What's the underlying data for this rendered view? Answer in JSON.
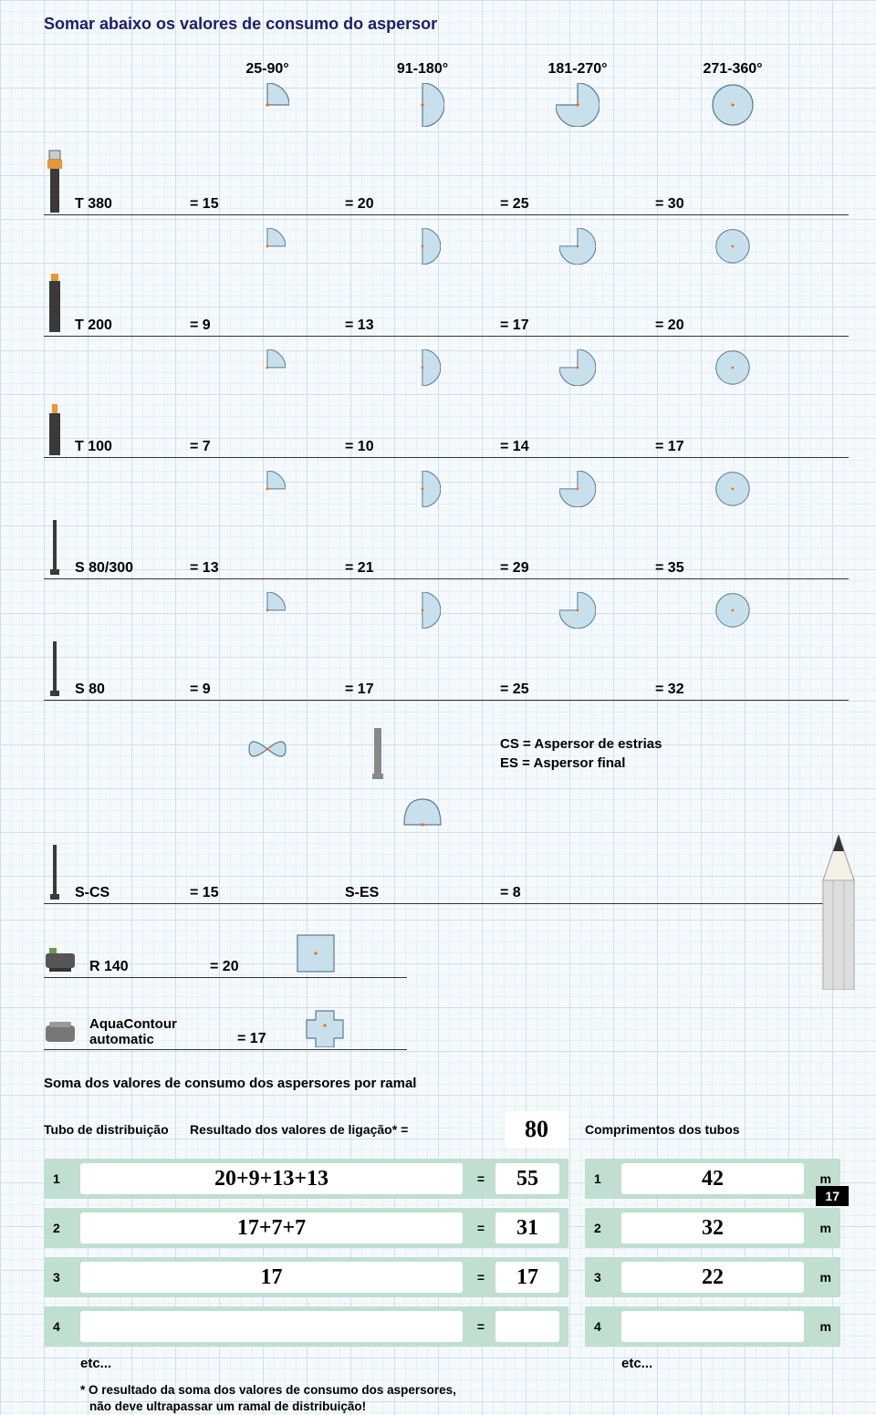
{
  "title": "Somar abaixo os valores de consumo do aspersor",
  "arc_headers": [
    "25-90°",
    "91-180°",
    "181-270°",
    "271-360°"
  ],
  "arc_fill": "#c7e0ec",
  "arc_stroke": "#5a7a95",
  "dot_color": "#ff6400",
  "rows": [
    {
      "label": "T 380",
      "vals": [
        "= 15",
        "= 20",
        "= 25",
        "= 30"
      ],
      "icon": "t380"
    },
    {
      "label": "T 200",
      "vals": [
        "= 9",
        "= 13",
        "= 17",
        "= 20"
      ],
      "icon": "t200"
    },
    {
      "label": "T  100",
      "vals": [
        "= 7",
        "= 10",
        "= 14",
        "= 17"
      ],
      "icon": "t100"
    },
    {
      "label": "S 80/300",
      "vals": [
        "= 13",
        "= 21",
        "= 29",
        "= 35"
      ],
      "icon": "stick"
    },
    {
      "label": "S 80",
      "vals": [
        "= 9",
        "= 17",
        "= 25",
        "= 32"
      ],
      "icon": "stick"
    }
  ],
  "cs_legend_1": "CS = Aspersor de estrias",
  "cs_legend_2": "ES = Aspersor final",
  "scs": {
    "l1": "S-CS",
    "v1": "= 15",
    "l2": "S-ES",
    "v2": "= 8"
  },
  "extras": [
    {
      "label": "R 140",
      "val": "= 20",
      "icon": "r140"
    },
    {
      "label": "AquaContour automatic",
      "val": "= 17",
      "icon": "aqua"
    }
  ],
  "soma_hdr": "Soma dos valores de consumo dos aspersores por ramal",
  "calc_left_hdr_1": "Tubo de distribuição",
  "calc_left_hdr_2": "Resultado dos valores de ligação* =",
  "calc_left_top_box": "80",
  "calc_right_hdr": "Comprimentos dos tubos",
  "calc_rows": [
    {
      "n": "1",
      "expr": "20+9+13+13",
      "res": "55",
      "len": "42"
    },
    {
      "n": "2",
      "expr": "17+7+7",
      "res": "31",
      "len": "32"
    },
    {
      "n": "3",
      "expr": "17",
      "res": "17",
      "len": "22"
    },
    {
      "n": "4",
      "expr": "",
      "res": "",
      "len": ""
    }
  ],
  "etc": "etc...",
  "footnote_1": "* O resultado da soma dos valores de consumo dos aspersores,",
  "footnote_2": "não deve ultrapassar um ramal de distribuição!",
  "unit_m": "m",
  "eq": "=",
  "pagenum": "17",
  "calc_bg": "#c1dfd0"
}
